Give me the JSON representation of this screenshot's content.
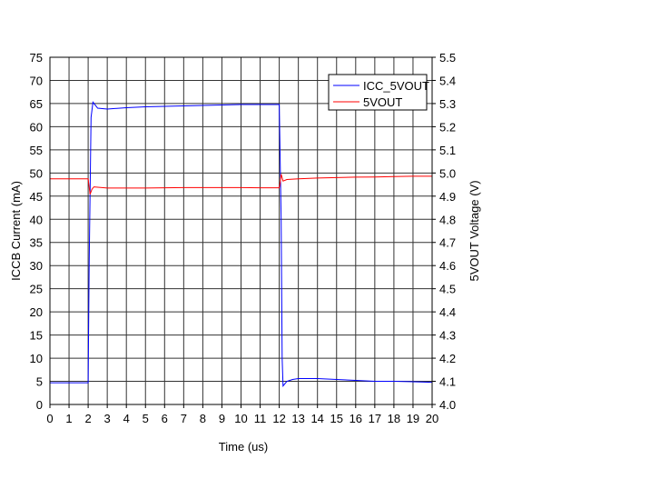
{
  "chart_data": {
    "type": "line",
    "title": "",
    "xlabel": "Time (us)",
    "ylabel": "ICCB Current (mA)",
    "y2label": "5VOUT Voltage (V)",
    "xlim": [
      0,
      20
    ],
    "ylim": [
      0,
      75
    ],
    "y2lim": [
      4.0,
      5.5
    ],
    "xticks": [
      0,
      1,
      2,
      3,
      4,
      5,
      6,
      7,
      8,
      9,
      10,
      11,
      12,
      13,
      14,
      15,
      16,
      17,
      18,
      19,
      20
    ],
    "yticks": [
      0,
      5,
      10,
      15,
      20,
      25,
      30,
      35,
      40,
      45,
      50,
      55,
      60,
      65,
      70,
      75
    ],
    "y2ticks": [
      "4.0",
      "4.1",
      "4.2",
      "4.3",
      "4.4",
      "4.5",
      "4.6",
      "4.7",
      "4.8",
      "4.9",
      "5.0",
      "5.1",
      "5.2",
      "5.3",
      "5.4",
      "5.5"
    ],
    "grid": true,
    "legend": "top-right",
    "series": [
      {
        "name": "ICC_5VOUT",
        "axis": "left",
        "color": "#0000ff",
        "x": [
          0,
          2.0,
          2.05,
          2.15,
          2.25,
          2.5,
          3,
          4,
          5,
          6,
          7,
          8,
          9,
          10,
          11,
          12.0,
          12.1,
          12.15,
          12.2,
          12.4,
          12.7,
          13,
          14,
          15,
          16,
          17,
          18,
          19,
          20
        ],
        "y": [
          4.7,
          4.7,
          30,
          62,
          65.3,
          64,
          63.8,
          64.1,
          64.3,
          64.4,
          64.5,
          64.6,
          64.7,
          64.8,
          64.8,
          64.8,
          40,
          10,
          4.0,
          5.0,
          5.4,
          5.6,
          5.6,
          5.4,
          5.2,
          5.0,
          5.0,
          4.9,
          4.8
        ]
      },
      {
        "name": "5VOUT",
        "axis": "right",
        "color": "#ff0000",
        "x": [
          0,
          2.0,
          2.1,
          2.2,
          2.3,
          3,
          4,
          5,
          6,
          7,
          8,
          9,
          10,
          11,
          12.0,
          12.05,
          12.1,
          12.2,
          12.4,
          13,
          14,
          15,
          16,
          17,
          18,
          19,
          20
        ],
        "y": [
          4.975,
          4.975,
          4.908,
          4.93,
          4.94,
          4.935,
          4.935,
          4.935,
          4.936,
          4.937,
          4.937,
          4.937,
          4.937,
          4.936,
          4.936,
          4.96,
          4.995,
          4.965,
          4.972,
          4.975,
          4.978,
          4.98,
          4.982,
          4.983,
          4.985,
          4.986,
          4.986
        ]
      }
    ]
  }
}
